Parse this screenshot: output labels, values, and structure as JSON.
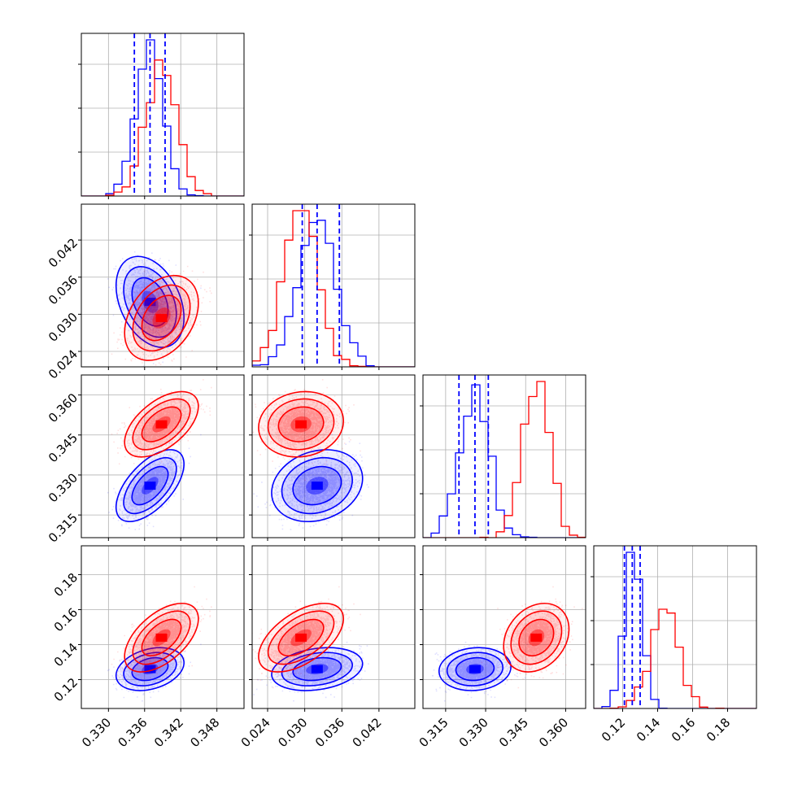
{
  "chart_data": {
    "type": "corner",
    "grid": true,
    "colors": {
      "series_a": "#0000ff",
      "series_b": "#ff0000"
    },
    "axis_ticks": [
      [
        "0.330",
        "0.336",
        "0.342",
        "0.348"
      ],
      [
        "0.024",
        "0.030",
        "0.036",
        "0.042"
      ],
      [
        "0.315",
        "0.330",
        "0.345",
        "0.360"
      ],
      [
        "0.12",
        "0.14",
        "0.16",
        "0.18"
      ]
    ],
    "params": [
      {
        "range": [
          0.3255,
          0.3525
        ],
        "ticks": [
          0.33,
          0.336,
          0.342,
          0.348
        ]
      },
      {
        "range": [
          0.0215,
          0.0478
        ],
        "ticks": [
          0.024,
          0.03,
          0.036,
          0.042
        ]
      },
      {
        "range": [
          0.3065,
          0.3675
        ],
        "ticks": [
          0.315,
          0.33,
          0.345,
          0.36
        ]
      },
      {
        "range": [
          0.1035,
          0.1965
        ],
        "ticks": [
          0.12,
          0.14,
          0.16,
          0.18
        ]
      }
    ],
    "series": [
      {
        "color": "#0000ff",
        "mean": [
          0.3369,
          0.032,
          0.326,
          0.126
        ],
        "sd": [
          0.0023,
          0.003,
          0.0055,
          0.005
        ],
        "corr": {
          "0-1": -0.35,
          "0-2": 0.6,
          "0-3": 0.3,
          "1-2": 0.2,
          "1-3": 0.25,
          "2-3": 0.1
        },
        "quantiles": [
          [
            0.3343,
            0.3369,
            0.3394
          ],
          [
            0.0296,
            0.032,
            0.0356
          ],
          [
            0.32,
            0.326,
            0.331
          ],
          [
            0.121,
            0.1255,
            0.13
          ]
        ]
      },
      {
        "color": "#ff0000",
        "mean": [
          0.3388,
          0.0294,
          0.349,
          0.144
        ],
        "sd": [
          0.0025,
          0.0028,
          0.005,
          0.008
        ],
        "corr": {
          "0-1": 0.35,
          "0-2": 0.55,
          "0-3": 0.55,
          "1-2": 0.1,
          "1-3": 0.55,
          "2-3": 0.25
        }
      }
    ]
  }
}
